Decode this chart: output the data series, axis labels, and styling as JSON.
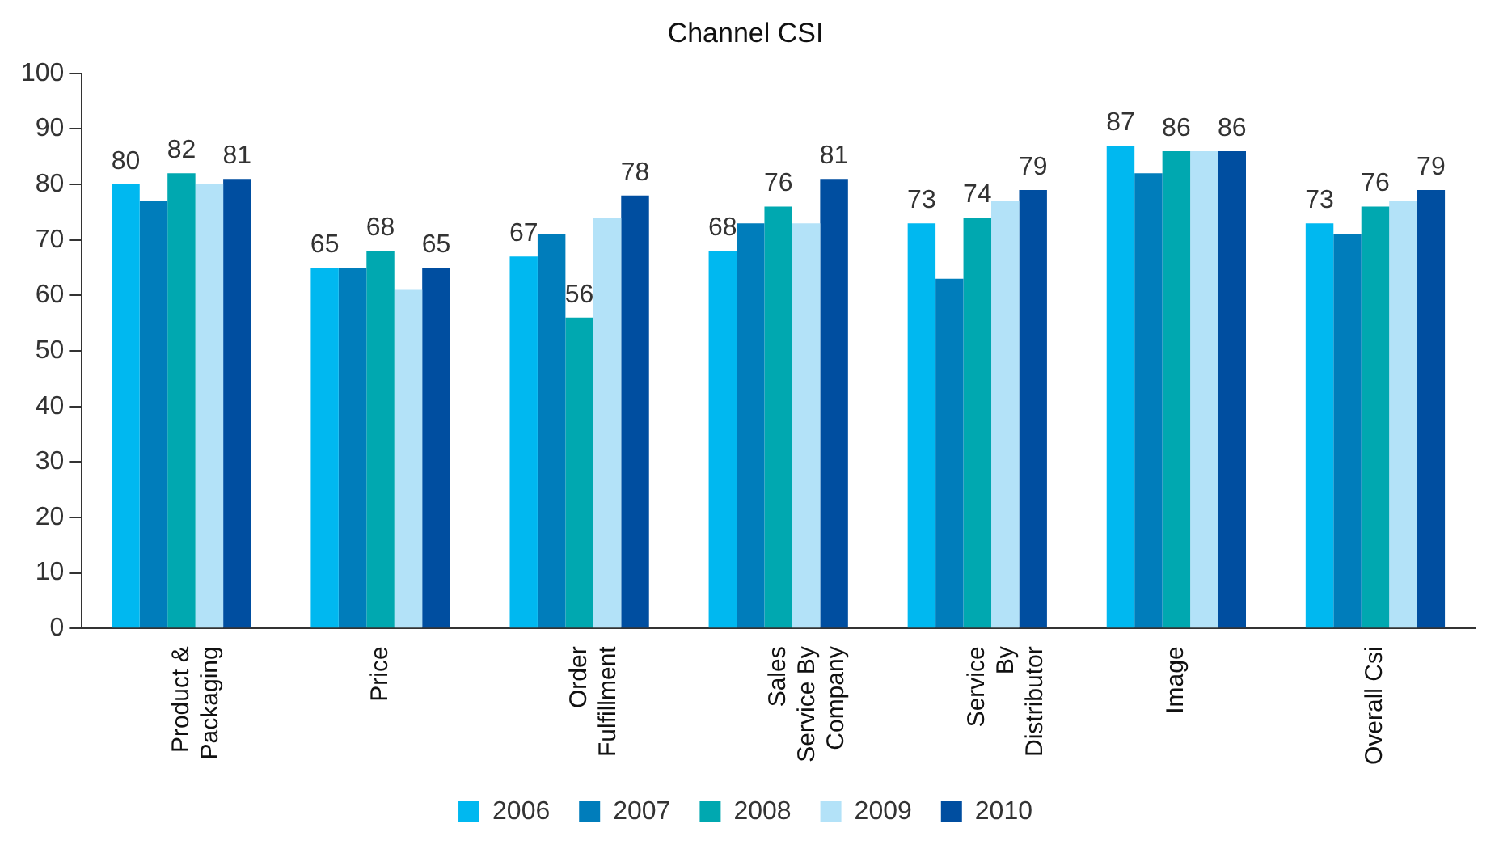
{
  "chart_data": {
    "type": "bar",
    "title": "Channel CSI",
    "categories": [
      "Product &\nPackaging",
      "Price",
      "Order\nFulfillment",
      "Sales\nService By\nCompany",
      "Service\nBy\nDistributor",
      "Image",
      "Overall Csi"
    ],
    "series": [
      {
        "name": "2006",
        "color": "#00b8f0",
        "values": [
          80,
          65,
          67,
          68,
          73,
          87,
          73
        ],
        "value_labels": [
          "80",
          "65",
          "67",
          "68",
          "73",
          "87",
          "73"
        ]
      },
      {
        "name": "2007",
        "color": "#007dbb",
        "values": [
          77,
          65,
          71,
          73,
          63,
          82,
          71
        ],
        "value_labels": [
          null,
          null,
          null,
          null,
          null,
          null,
          null
        ]
      },
      {
        "name": "2008",
        "color": "#00a8b0",
        "values": [
          82,
          68,
          56,
          76,
          74,
          86,
          76
        ],
        "value_labels": [
          "82",
          "68",
          "56",
          "76",
          "74",
          "86",
          "76"
        ]
      },
      {
        "name": "2009",
        "color": "#b3e2f8",
        "values": [
          80,
          61,
          74,
          73,
          77,
          86,
          77
        ],
        "value_labels": [
          null,
          null,
          null,
          null,
          null,
          null,
          null
        ]
      },
      {
        "name": "2010",
        "color": "#004ea0",
        "values": [
          81,
          65,
          78,
          81,
          79,
          86,
          79
        ],
        "value_labels": [
          "81",
          "65",
          "78",
          "81",
          "79",
          "86",
          "79"
        ]
      }
    ],
    "ylim": [
      0,
      100
    ],
    "yticks": [
      0,
      10,
      20,
      30,
      40,
      50,
      60,
      70,
      80,
      90,
      100
    ],
    "grid": false,
    "legend": "bottom"
  }
}
